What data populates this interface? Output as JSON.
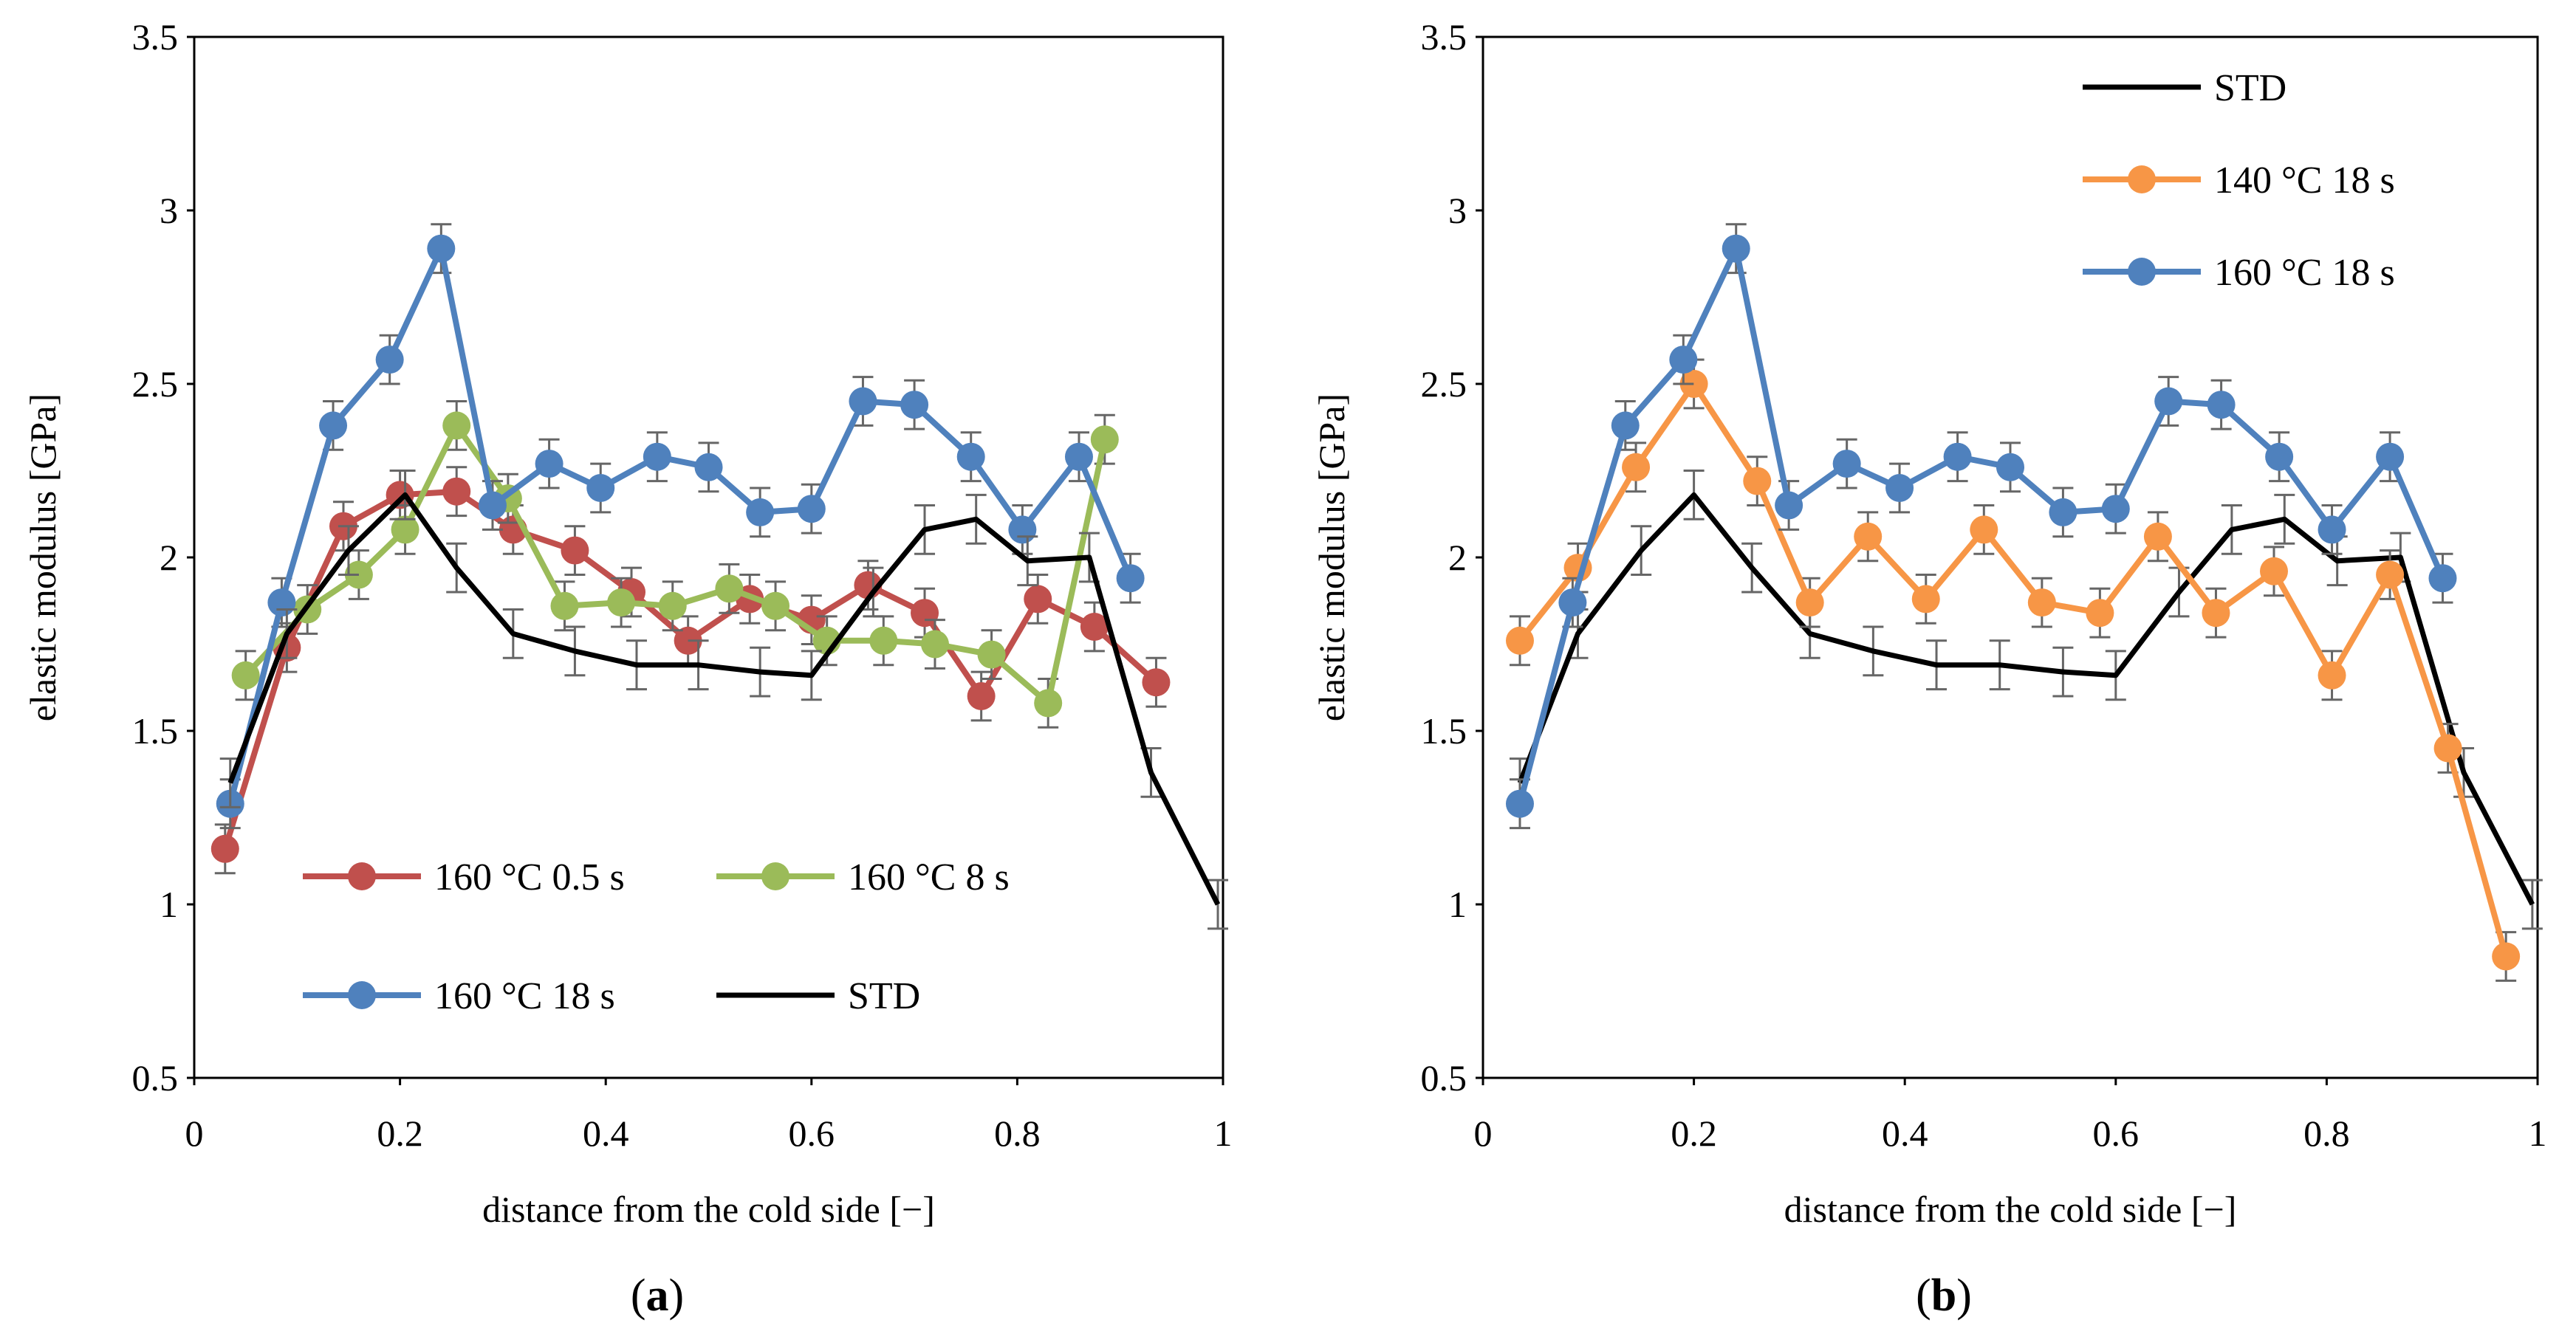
{
  "figure_labels": {
    "a": {
      "open": "(",
      "letter": "a",
      "close": ")"
    },
    "b": {
      "open": "(",
      "letter": "b",
      "close": ")"
    }
  },
  "chart_data": [
    {
      "id": "a",
      "type": "line",
      "title": "",
      "xlabel": "distance from the cold side [−]",
      "ylabel": "elastic modulus [GPa]",
      "xlim": [
        0,
        1
      ],
      "ylim": [
        0.5,
        3.5
      ],
      "xticks": [
        0,
        0.2,
        0.4,
        0.6,
        0.8,
        1
      ],
      "xtick_labels": [
        "0",
        "0.2",
        "0.4",
        "0.6",
        "0.8",
        "1"
      ],
      "yticks": [
        0.5,
        1,
        1.5,
        2,
        2.5,
        3,
        3.5
      ],
      "ytick_labels": [
        "0.5",
        "1",
        "1.5",
        "2",
        "2.5",
        "3",
        "3.5"
      ],
      "grid": false,
      "legend_position": "bottom-left (two columns)",
      "series": [
        {
          "name": "160 °C 0.5 s",
          "color": "#c0504d",
          "markers": true,
          "x": [
            0.03,
            0.09,
            0.145,
            0.2,
            0.255,
            0.31,
            0.37,
            0.425,
            0.48,
            0.54,
            0.6,
            0.655,
            0.71,
            0.765,
            0.82,
            0.875,
            0.935
          ],
          "y": [
            1.16,
            1.74,
            2.09,
            2.18,
            2.19,
            2.08,
            2.02,
            1.9,
            1.76,
            1.88,
            1.82,
            1.92,
            1.84,
            1.6,
            1.88,
            1.8,
            1.64
          ]
        },
        {
          "name": "160 °C 8 s",
          "color": "#9bbb59",
          "markers": true,
          "x": [
            0.05,
            0.11,
            0.16,
            0.205,
            0.255,
            0.305,
            0.36,
            0.415,
            0.465,
            0.52,
            0.565,
            0.615,
            0.67,
            0.72,
            0.775,
            0.83,
            0.885
          ],
          "y": [
            1.66,
            1.85,
            1.95,
            2.08,
            2.38,
            2.17,
            1.86,
            1.87,
            1.86,
            1.91,
            1.86,
            1.76,
            1.76,
            1.75,
            1.72,
            1.58,
            2.34
          ]
        },
        {
          "name": "160 °C 18 s",
          "color": "#4f81bd",
          "markers": true,
          "x": [
            0.035,
            0.085,
            0.135,
            0.19,
            0.24,
            0.29,
            0.345,
            0.395,
            0.45,
            0.5,
            0.55,
            0.6,
            0.65,
            0.7,
            0.755,
            0.805,
            0.86,
            0.91
          ],
          "y": [
            1.29,
            1.87,
            2.38,
            2.57,
            2.89,
            2.15,
            2.27,
            2.2,
            2.29,
            2.26,
            2.13,
            2.14,
            2.45,
            2.44,
            2.29,
            2.08,
            2.29,
            1.94
          ]
        },
        {
          "name": "STD",
          "color": "#000000",
          "markers": false,
          "x": [
            0.035,
            0.09,
            0.15,
            0.205,
            0.255,
            0.31,
            0.37,
            0.43,
            0.49,
            0.55,
            0.6,
            0.66,
            0.71,
            0.76,
            0.81,
            0.87,
            0.93,
            0.995
          ],
          "y": [
            1.35,
            1.78,
            2.02,
            2.18,
            1.97,
            1.78,
            1.73,
            1.69,
            1.69,
            1.67,
            1.66,
            1.9,
            2.08,
            2.11,
            1.99,
            2.0,
            1.38,
            1.0
          ]
        }
      ],
      "legend_entries": [
        {
          "series": "160 °C 0.5 s",
          "label": "160 °C 0.5 s",
          "color": "#c0504d",
          "marker": true
        },
        {
          "series": "160 °C 8 s",
          "label": "160 °C 8 s",
          "color": "#9bbb59",
          "marker": true
        },
        {
          "series": "160 °C 18 s",
          "label": "160 °C 18 s",
          "color": "#4f81bd",
          "marker": true
        },
        {
          "series": "STD",
          "label": "STD",
          "color": "#000000",
          "marker": false
        }
      ]
    },
    {
      "id": "b",
      "type": "line",
      "title": "",
      "xlabel": "distance from the cold side [−]",
      "ylabel": "elastic modulus [GPa]",
      "xlim": [
        0,
        1
      ],
      "ylim": [
        0.5,
        3.5
      ],
      "xticks": [
        0,
        0.2,
        0.4,
        0.6,
        0.8,
        1
      ],
      "xtick_labels": [
        "0",
        "0.2",
        "0.4",
        "0.6",
        "0.8",
        "1"
      ],
      "yticks": [
        0.5,
        1,
        1.5,
        2,
        2.5,
        3,
        3.5
      ],
      "ytick_labels": [
        "0.5",
        "1",
        "1.5",
        "2",
        "2.5",
        "3",
        "3.5"
      ],
      "grid": false,
      "legend_position": "top-right",
      "series": [
        {
          "name": "STD",
          "color": "#000000",
          "markers": false,
          "x": [
            0.035,
            0.09,
            0.15,
            0.2,
            0.255,
            0.31,
            0.37,
            0.43,
            0.49,
            0.55,
            0.6,
            0.66,
            0.71,
            0.76,
            0.81,
            0.87,
            0.93,
            0.995
          ],
          "y": [
            1.35,
            1.78,
            2.02,
            2.18,
            1.97,
            1.78,
            1.73,
            1.69,
            1.69,
            1.67,
            1.66,
            1.9,
            2.08,
            2.11,
            1.99,
            2.0,
            1.38,
            1.0
          ]
        },
        {
          "name": "140 °C 18 s",
          "color": "#f79646",
          "markers": true,
          "x": [
            0.035,
            0.09,
            0.145,
            0.2,
            0.26,
            0.31,
            0.365,
            0.42,
            0.475,
            0.53,
            0.585,
            0.64,
            0.695,
            0.75,
            0.805,
            0.86,
            0.915,
            0.97
          ],
          "y": [
            1.76,
            1.97,
            2.26,
            2.5,
            2.22,
            1.87,
            2.06,
            1.88,
            2.08,
            1.87,
            1.84,
            2.06,
            1.84,
            1.96,
            1.66,
            1.95,
            1.45,
            0.85
          ]
        },
        {
          "name": "160 °C 18 s",
          "color": "#4f81bd",
          "markers": true,
          "x": [
            0.035,
            0.085,
            0.135,
            0.19,
            0.24,
            0.29,
            0.345,
            0.395,
            0.45,
            0.5,
            0.55,
            0.6,
            0.65,
            0.7,
            0.755,
            0.805,
            0.86,
            0.91
          ],
          "y": [
            1.29,
            1.87,
            2.38,
            2.57,
            2.89,
            2.15,
            2.27,
            2.2,
            2.29,
            2.26,
            2.13,
            2.14,
            2.45,
            2.44,
            2.29,
            2.08,
            2.29,
            1.94
          ]
        }
      ],
      "legend_entries": [
        {
          "series": "STD",
          "label": "STD",
          "color": "#000000",
          "marker": false
        },
        {
          "series": "140 °C 18 s",
          "label": "140 °C 18 s",
          "color": "#f79646",
          "marker": true
        },
        {
          "series": "160 °C 18 s",
          "label": "160 °C 18 s",
          "color": "#4f81bd",
          "marker": true
        }
      ]
    }
  ]
}
